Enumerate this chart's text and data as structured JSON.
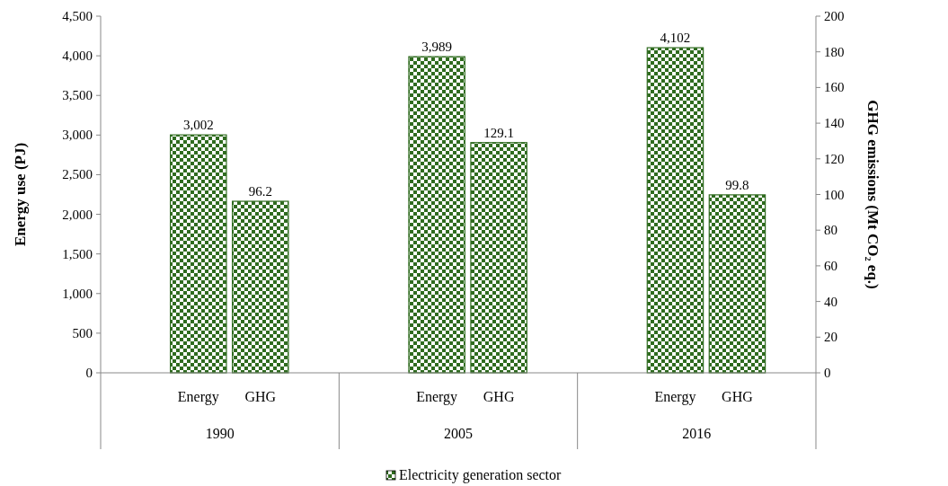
{
  "chart_data": {
    "type": "bar",
    "categories": [
      "1990",
      "2005",
      "2016"
    ],
    "series": [
      {
        "name": "Energy",
        "color": "#2f6b1f",
        "values": [
          3002,
          3989,
          4102
        ],
        "value_labels": [
          "3,002",
          "3,989",
          "4,102"
        ]
      },
      {
        "name": "GHG",
        "color": "#2f6b1f",
        "axis": "y2",
        "values": [
          96.2,
          129.1,
          99.8
        ],
        "data_labels": true
      }
    ],
    "ylabel": "Energy use (PJ)",
    "y2label": "GHG emissions (Mt CO₂ eq.)",
    "ylim": [
      0,
      4500
    ],
    "yticks": [
      0,
      500,
      {
        "value": 1000,
        "label": "1,000"
      },
      {
        "value": 1500,
        "label": "1,500"
      },
      {
        "value": 2000,
        "label": "2,000"
      },
      {
        "value": 2500,
        "label": "2,500"
      },
      {
        "value": 3000,
        "label": "3,000"
      },
      {
        "value": 3500,
        "label": "3,500"
      },
      {
        "value": 4000,
        "label": "4,000"
      },
      {
        "value": 4500,
        "label": "4,500"
      }
    ],
    "y2lim": [
      0,
      200
    ],
    "y2ticks": [
      0,
      20,
      40,
      60,
      80,
      100,
      120,
      140,
      160,
      180,
      200
    ],
    "legend_title": "Electricity generation sector",
    "legend": "bottom"
  }
}
